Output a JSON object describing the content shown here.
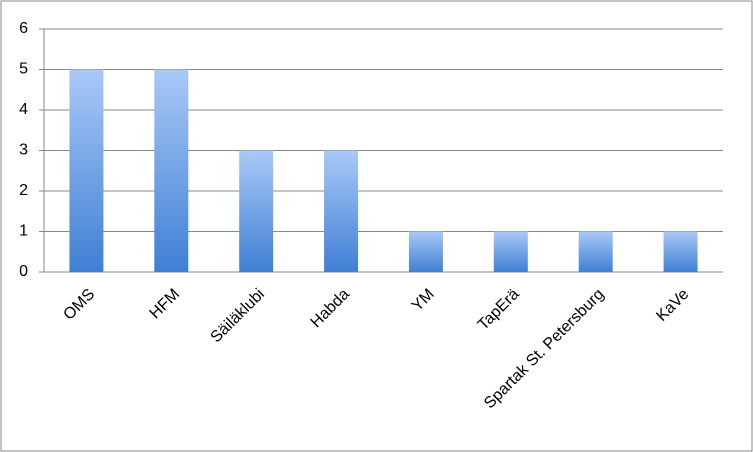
{
  "chart_data": {
    "type": "bar",
    "categories": [
      "OMS",
      "HFM",
      "Säiläklubi",
      "Habda",
      "YM",
      "TapErä",
      "Spartak St. Petersburg",
      "KaVe"
    ],
    "values": [
      5,
      5,
      3,
      3,
      1,
      1,
      1,
      1
    ],
    "color": "#3f7fd3",
    "ylim": [
      0,
      6
    ],
    "yticks": [
      0,
      1,
      2,
      3,
      4,
      5,
      6
    ],
    "grid": true
  }
}
